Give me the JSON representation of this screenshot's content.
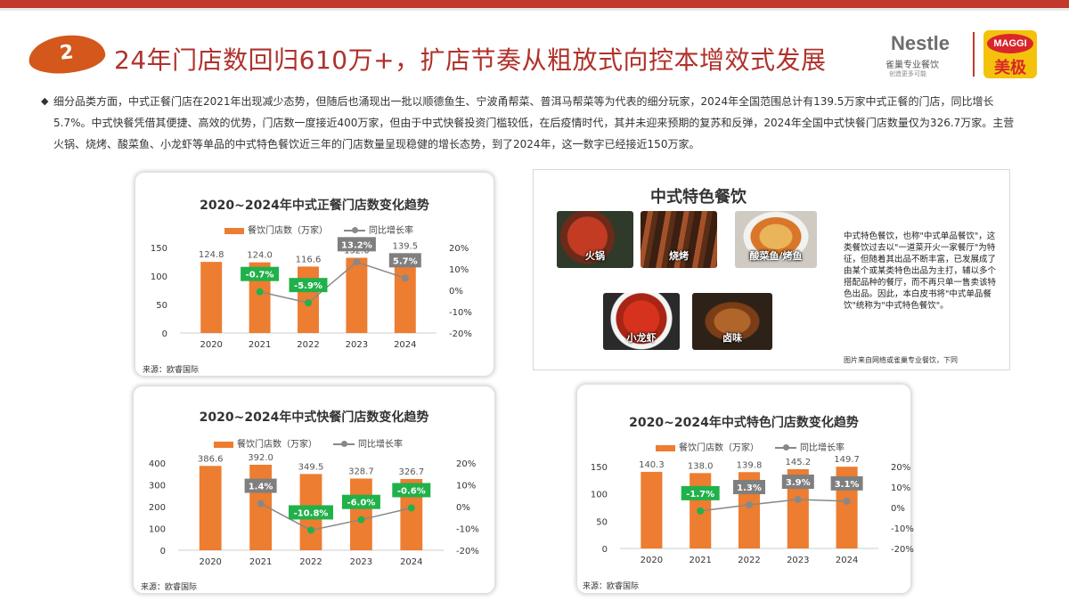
{
  "header": {
    "section_number": "2",
    "title": "24年门店数回归610万+，扩店节奏从粗放式向控本增效式发展",
    "nestle_logo": "Nestle",
    "nestle_sub": "雀巢专业餐饮",
    "nestle_tagline": "创造更多可能",
    "maggi_logo": "MAGGI",
    "maggi_cn": "美极"
  },
  "intro_text": "细分品类方面，中式正餐门店在2021年出现减少态势，但随后也涌现出一批以顺德鱼生、宁波甬帮菜、普洱马帮菜等为代表的细分玩家，2024年全国范围总计有139.5万家中式正餐的门店，同比增长5.7%。中式快餐凭借其便捷、高效的优势，门店数一度接近400万家，但由于中式快餐投资门槛较低，在后疫情时代，其并未迎来预期的复苏和反弹，2024年全国中式快餐门店数量仅为326.7万家。主营火锅、烧烤、酸菜鱼、小龙虾等单品的中式特色餐饮近三年的门店数量呈现稳健的增长态势，到了2024年，这一数字已经接近150万家。",
  "colors": {
    "bar": "#ed7d31",
    "line": "#888888",
    "negative_label": "#21b14a",
    "positive_label": "#7f7f7f",
    "title_red": "#b0312b"
  },
  "chart_data": [
    {
      "type": "bar",
      "title": "2020~2024年中式正餐门店数变化趋势",
      "categories": [
        "2020",
        "2021",
        "2022",
        "2023",
        "2024"
      ],
      "series": [
        {
          "name": "餐饮门店数（万家）",
          "values": [
            124.8,
            124.0,
            116.6,
            132.0,
            139.5
          ],
          "labels": [
            "124.8",
            "124.0",
            "116.6",
            "132.0",
            "139.5"
          ]
        },
        {
          "name": "同比增长率",
          "type": "line",
          "axis": "right",
          "values": [
            null,
            -0.7,
            -5.9,
            13.2,
            5.7
          ],
          "labels": [
            "",
            "-0.7%",
            "-5.9%",
            "13.2%",
            "5.7%"
          ]
        }
      ],
      "ylim": [
        0,
        150
      ],
      "yticks": [
        "0",
        "50",
        "100",
        "150"
      ],
      "y2lim": [
        -20,
        20
      ],
      "y2ticks": [
        "20%",
        "10%",
        "0%",
        "-10%",
        "-20%"
      ],
      "source": "来源：欧睿国际"
    },
    {
      "type": "bar",
      "title": "2020~2024年中式快餐门店数变化趋势",
      "categories": [
        "2020",
        "2021",
        "2022",
        "2023",
        "2024"
      ],
      "series": [
        {
          "name": "餐饮门店数（万家）",
          "values": [
            386.6,
            392.0,
            349.5,
            328.7,
            326.7
          ],
          "labels": [
            "386.6",
            "392.0",
            "349.5",
            "328.7",
            "326.7"
          ]
        },
        {
          "name": "同比增长率",
          "type": "line",
          "axis": "right",
          "values": [
            null,
            1.4,
            -10.8,
            -6.0,
            -0.6
          ],
          "labels": [
            "",
            "1.4%",
            "-10.8%",
            "-6.0%",
            "-0.6%"
          ]
        }
      ],
      "ylim": [
        0,
        400
      ],
      "yticks": [
        "0",
        "100",
        "200",
        "300",
        "400"
      ],
      "y2lim": [
        -20,
        20
      ],
      "y2ticks": [
        "20%",
        "10%",
        "0%",
        "-10%",
        "-20%"
      ],
      "source": "来源：欧睿国际"
    },
    {
      "type": "bar",
      "title": "2020~2024年中式特色门店数变化趋势",
      "categories": [
        "2020",
        "2021",
        "2022",
        "2023",
        "2024"
      ],
      "series": [
        {
          "name": "餐饮门店数（万家）",
          "values": [
            140.3,
            138.0,
            139.8,
            145.2,
            149.7
          ],
          "labels": [
            "140.3",
            "138.0",
            "139.8",
            "145.2",
            "149.7"
          ]
        },
        {
          "name": "同比增长率",
          "type": "line",
          "axis": "right",
          "values": [
            null,
            -1.7,
            1.3,
            3.9,
            3.1
          ],
          "labels": [
            "",
            "-1.7%",
            "1.3%",
            "3.9%",
            "3.1%"
          ]
        }
      ],
      "ylim": [
        0,
        150
      ],
      "yticks": [
        "0",
        "50",
        "100",
        "150"
      ],
      "y2lim": [
        -20,
        20
      ],
      "y2ticks": [
        "20%",
        "10%",
        "0%",
        "-10%",
        "-20%"
      ],
      "source": "来源：欧睿国际"
    }
  ],
  "feature": {
    "title": "中式特色餐饮",
    "items": [
      {
        "label": "火锅",
        "icon": "hotpot-photo"
      },
      {
        "label": "烧烤",
        "icon": "bbq-photo"
      },
      {
        "label": "酸菜鱼/烤鱼",
        "icon": "fish-photo"
      },
      {
        "label": "小龙虾",
        "icon": "crayfish-photo"
      },
      {
        "label": "卤味",
        "icon": "braised-photo"
      }
    ],
    "description": "中式特色餐饮，也称\"中式单品餐饮\"，这类餐饮过去以\"一道菜开火一家餐厅\"为特征，但随着其出品不断丰富，已发展成了由某个或某类特色出品为主打，辅以多个搭配品种的餐厅，而不再只单一售卖该特色出品。因此，本白皮书将\"中式单品餐饮\"统称为\"中式特色餐饮\"。",
    "note": "图片来自网络或雀巢专业餐饮，下同"
  }
}
